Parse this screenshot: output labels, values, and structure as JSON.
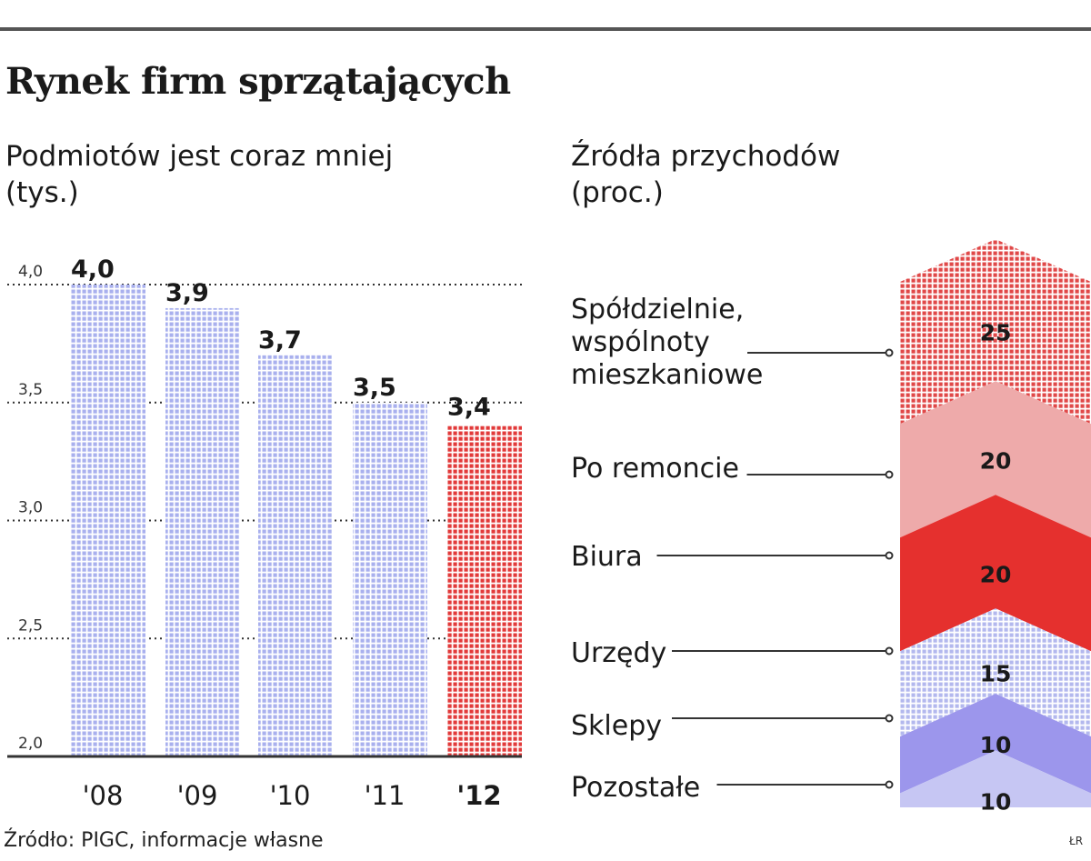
{
  "header": {
    "title": "Rynek firm sprzątających",
    "source": "Źródło: PIGC, informacje własne",
    "credit": "ŁR"
  },
  "colors": {
    "bar_blue": "#a9b0ee",
    "bar_red": "#e23a3a",
    "layer_red_dots": "#e04848",
    "layer_pink": "#eeaaaa",
    "layer_red": "#e5302e",
    "layer_blue_dots": "#b3b8ee",
    "layer_violet": "#9c96ec",
    "layer_lavender": "#c6c6f3"
  },
  "chart_data": [
    {
      "type": "bar",
      "title": "Podmiotów jest coraz mniej",
      "unit": "(tys.)",
      "categories": [
        "'08",
        "'09",
        "'10",
        "'11",
        "'12"
      ],
      "values": [
        4.0,
        3.9,
        3.7,
        3.5,
        3.4
      ],
      "value_labels": [
        "4,0",
        "3,9",
        "3,7",
        "3,5",
        "3,4"
      ],
      "highlight_index": 4,
      "yticks": [
        "2,0",
        "2,5",
        "3,0",
        "3,5",
        "4,0"
      ],
      "ytick_values": [
        2.0,
        2.5,
        3.0,
        3.5,
        4.0
      ],
      "ylim": [
        2.0,
        4.0
      ],
      "grid": true
    },
    {
      "type": "stacked",
      "title": "Źródła przychodów",
      "unit": "(proc.)",
      "categories": [
        "Spółdzielnie, wspólnoty mieszkaniowe",
        "Po remoncie",
        "Biura",
        "Urzędy",
        "Sklepy",
        "Pozostałe"
      ],
      "category_lines": [
        [
          "Spółdzielnie,",
          "wspólnoty",
          "mieszkaniowe"
        ],
        [
          "Po remoncie"
        ],
        [
          "Biura"
        ],
        [
          "Urzędy"
        ],
        [
          "Sklepy"
        ],
        [
          "Pozostałe"
        ]
      ],
      "values": [
        25,
        20,
        20,
        15,
        10,
        10
      ],
      "value_labels": [
        "25",
        "20",
        "20",
        "15",
        "10",
        "10"
      ]
    }
  ]
}
